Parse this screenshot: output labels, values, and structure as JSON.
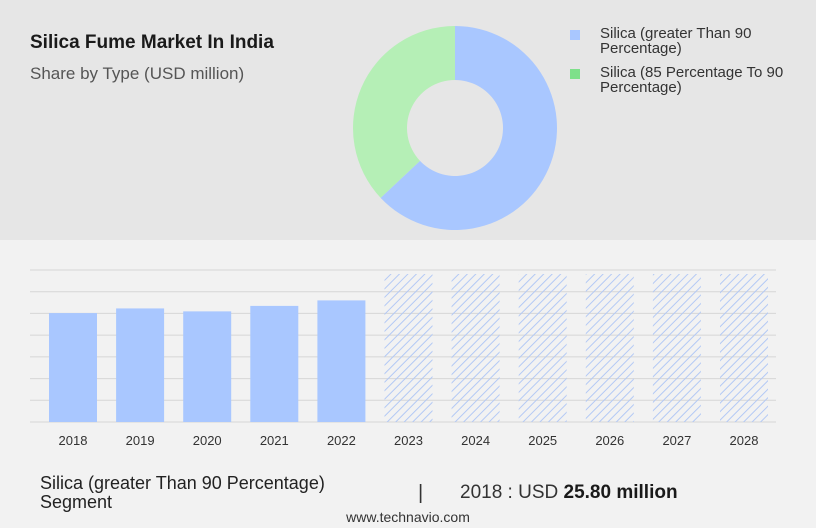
{
  "header": {
    "title": "Silica Fume Market In India",
    "subtitle": "Share by Type (USD million)"
  },
  "colors": {
    "series_primary": "#a9c7ff",
    "series_secondary": "#b5efb6",
    "legend_secondary_swatch": "#7ee08a",
    "forecast_hatch": "#b3c9f5",
    "grid": "#d6d6d6"
  },
  "chart_data": [
    {
      "type": "pie",
      "donut": true,
      "title": "",
      "labels": [
        "Silica (greater Than 90 Percentage)",
        "Silica (85 Percentage To 90 Percentage)"
      ],
      "values": [
        63,
        37
      ],
      "legend": [
        "Silica (greater Than 90 Percentage)",
        "Silica (85 Percentage To 90 Percentage)"
      ],
      "legend_placement": "right"
    },
    {
      "type": "bar",
      "categories": [
        "2018",
        "2019",
        "2020",
        "2021",
        "2022",
        "2023",
        "2024",
        "2025",
        "2026",
        "2027",
        "2028"
      ],
      "values": [
        25.8,
        26.9,
        26.2,
        27.5,
        28.8,
        null,
        null,
        null,
        null,
        null,
        null
      ],
      "forecast_categories": [
        "2023",
        "2024",
        "2025",
        "2026",
        "2027",
        "2028"
      ],
      "xlabel": "",
      "ylabel": "",
      "ylim": [
        0,
        36
      ],
      "grid": true
    }
  ],
  "footer": {
    "segment": "Silica (greater Than 90 Percentage) Segment",
    "separator": "|",
    "value_prefix": "2018 : USD",
    "value": "25.80 million",
    "site": "www.technavio.com"
  }
}
